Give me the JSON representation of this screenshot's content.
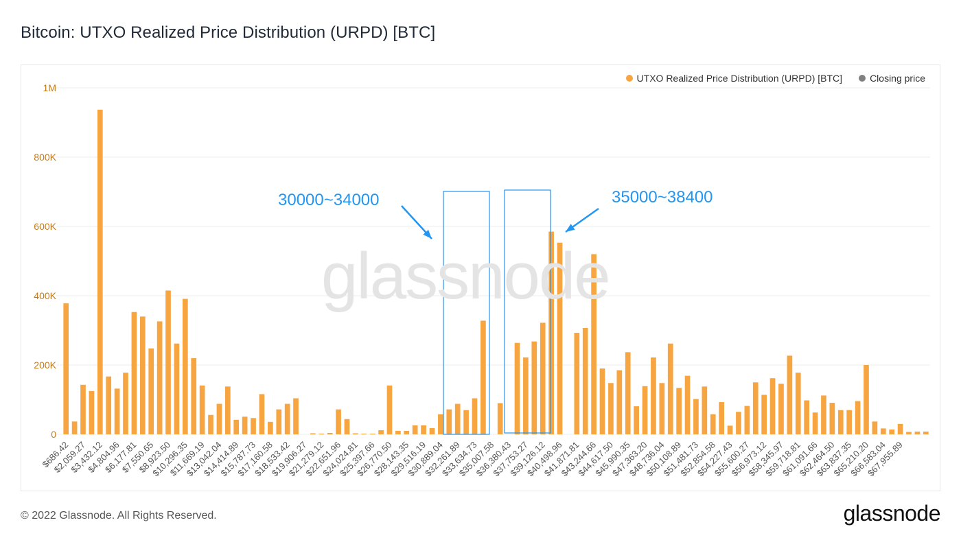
{
  "title": "Bitcoin: UTXO Realized Price Distribution (URPD) [BTC]",
  "legend": {
    "series_label": "UTXO Realized Price Distribution (URPD) [BTC]",
    "closing_label": "Closing price"
  },
  "colors": {
    "bar": "#f7a541",
    "closing": "#808080",
    "annotation": "#2196f3",
    "axis_text": "#c47a1a"
  },
  "watermark": "glassnode",
  "annotations": {
    "left": "30000~34000",
    "right": "35000~38400"
  },
  "footer": {
    "copyright": "© 2022 Glassnode. All Rights Reserved.",
    "logo": "glassnode"
  },
  "chart_data": {
    "type": "bar",
    "title": "Bitcoin: UTXO Realized Price Distribution (URPD) [BTC]",
    "xlabel": "",
    "ylabel": "",
    "ylim": [
      0,
      1000000
    ],
    "y_ticks": [
      0,
      200000,
      400000,
      600000,
      800000,
      1000000
    ],
    "y_tick_labels": [
      "0",
      "200K",
      "400K",
      "600K",
      "800K",
      "1M"
    ],
    "x_tick_labels": [
      "$686.42",
      "$2,059.27",
      "$3,432.12",
      "$4,804.96",
      "$6,177.81",
      "$7,550.65",
      "$8,923.50",
      "$10,296.35",
      "$11,669.19",
      "$13,042.04",
      "$14,414.89",
      "$15,787.73",
      "$17,160.58",
      "$18,533.42",
      "$19,906.27",
      "$21,279.12",
      "$22,651.96",
      "$24,024.81",
      "$25,397.66",
      "$26,770.50",
      "$28,143.35",
      "$29,516.19",
      "$30,889.04",
      "$32,261.89",
      "$33,634.73",
      "$35,007.58",
      "$36,380.43",
      "$37,753.27",
      "$39,126.12",
      "$40,498.96",
      "$41,871.81",
      "$43,244.66",
      "$44,617.50",
      "$45,990.35",
      "$47,363.20",
      "$48,736.04",
      "$50,108.89",
      "$51,481.73",
      "$52,854.58",
      "$54,227.43",
      "$55,600.27",
      "$56,973.12",
      "$58,345.97",
      "$59,718.81",
      "$61,091.66",
      "$62,464.50",
      "$63,837.35",
      "$65,210.20",
      "$66,583.04",
      "$67,955.89"
    ],
    "closing_index": 52,
    "series": [
      {
        "name": "UTXO Realized Price Distribution (URPD) [BTC]",
        "values": [
          378000,
          37000,
          143000,
          125000,
          937000,
          167000,
          132000,
          178000,
          353000,
          340000,
          248000,
          326000,
          415000,
          262000,
          391000,
          220000,
          141000,
          56000,
          88000,
          138000,
          42000,
          51000,
          47000,
          116000,
          36000,
          72000,
          88000,
          104000,
          0,
          3000,
          2000,
          4000,
          72000,
          44000,
          3000,
          2000,
          2000,
          12000,
          141000,
          10000,
          10000,
          26000,
          26000,
          18000,
          58000,
          72000,
          88000,
          70000,
          104000,
          328000,
          0,
          90000,
          0,
          264000,
          222000,
          268000,
          322000,
          585000,
          553000,
          0,
          293000,
          307000,
          520000,
          190000,
          148000,
          185000,
          237000,
          81000,
          139000,
          222000,
          148000,
          262000,
          134000,
          169000,
          102000,
          138000,
          58000,
          93000,
          25000,
          65000,
          82000,
          150000,
          114000,
          162000,
          146000,
          227000,
          178000,
          98000,
          63000,
          112000,
          91000,
          70000,
          70000,
          96000,
          200000,
          37000,
          17000,
          14000,
          30000,
          7000,
          8000,
          8000
        ]
      }
    ]
  }
}
